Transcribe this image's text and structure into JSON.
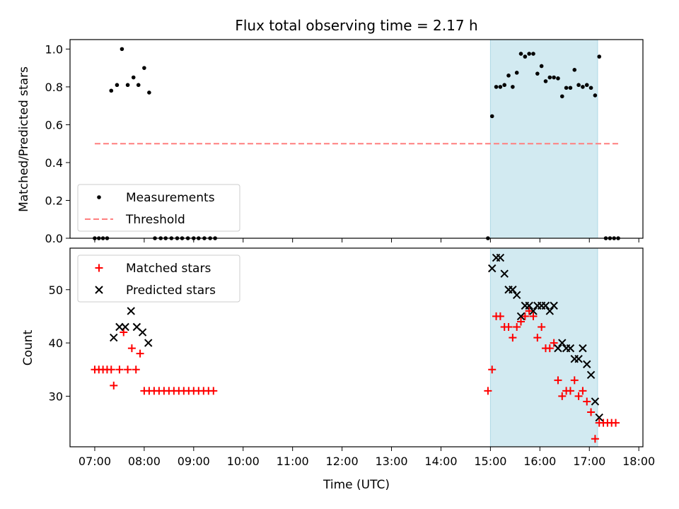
{
  "chart_data": {
    "type": "scatter",
    "title": "Flux total observing time = 2.17 h",
    "xlabel": "Time (UTC)",
    "x_unit": "hours UTC",
    "xlim": [
      "06:30",
      "18:05"
    ],
    "x_ticks": [
      "07:00",
      "08:00",
      "09:00",
      "10:00",
      "11:00",
      "12:00",
      "13:00",
      "14:00",
      "15:00",
      "16:00",
      "17:00",
      "18:00"
    ],
    "shaded_interval": {
      "start": "15:00",
      "end": "17:10",
      "color": "#add8e6"
    },
    "panels": [
      {
        "name": "ratio",
        "ylabel": "Matched/Predicted stars",
        "ylim": [
          0,
          1.05
        ],
        "y_ticks": [
          0.0,
          0.2,
          0.4,
          0.6,
          0.8,
          1.0
        ],
        "legend": {
          "placement": "lower-left",
          "entries": [
            {
              "label": "Measurements",
              "marker": "dot",
              "color": "#000000"
            },
            {
              "label": "Threshold",
              "marker": "dashed-line",
              "color": "#ff7f7f"
            }
          ]
        },
        "threshold": {
          "value": 0.5,
          "x_start": "07:00",
          "x_end": "17:35"
        },
        "series": [
          {
            "name": "Measurements",
            "marker": "dot",
            "color": "#000000",
            "points": [
              [
                "07:00",
                0
              ],
              [
                "07:05",
                0
              ],
              [
                "07:10",
                0
              ],
              [
                "07:15",
                0
              ],
              [
                "07:20",
                0.78
              ],
              [
                "07:27",
                0.81
              ],
              [
                "07:33",
                1.0
              ],
              [
                "07:40",
                0.81
              ],
              [
                "07:47",
                0.85
              ],
              [
                "07:53",
                0.81
              ],
              [
                "08:00",
                0.9
              ],
              [
                "08:06",
                0.77
              ],
              [
                "08:13",
                0
              ],
              [
                "08:20",
                0
              ],
              [
                "08:26",
                0
              ],
              [
                "08:33",
                0
              ],
              [
                "08:40",
                0
              ],
              [
                "08:46",
                0
              ],
              [
                "08:53",
                0
              ],
              [
                "09:00",
                0
              ],
              [
                "09:06",
                0
              ],
              [
                "09:13",
                0
              ],
              [
                "09:20",
                0
              ],
              [
                "09:26",
                0
              ],
              [
                "14:57",
                0
              ],
              [
                "15:02",
                0.645
              ],
              [
                "15:07",
                0.8
              ],
              [
                "15:12",
                0.8
              ],
              [
                "15:17",
                0.81
              ],
              [
                "15:22",
                0.86
              ],
              [
                "15:27",
                0.8
              ],
              [
                "15:32",
                0.875
              ],
              [
                "15:37",
                0.975
              ],
              [
                "15:42",
                0.96
              ],
              [
                "15:47",
                0.975
              ],
              [
                "15:52",
                0.975
              ],
              [
                "15:57",
                0.87
              ],
              [
                "16:02",
                0.91
              ],
              [
                "16:07",
                0.83
              ],
              [
                "16:12",
                0.85
              ],
              [
                "16:17",
                0.85
              ],
              [
                "16:22",
                0.845
              ],
              [
                "16:27",
                0.75
              ],
              [
                "16:32",
                0.795
              ],
              [
                "16:37",
                0.795
              ],
              [
                "16:42",
                0.89
              ],
              [
                "16:47",
                0.81
              ],
              [
                "16:52",
                0.8
              ],
              [
                "16:57",
                0.81
              ],
              [
                "17:02",
                0.795
              ],
              [
                "17:07",
                0.755
              ],
              [
                "17:12",
                0.96
              ],
              [
                "17:20",
                0
              ],
              [
                "17:25",
                0
              ],
              [
                "17:30",
                0
              ],
              [
                "17:35",
                0
              ]
            ]
          }
        ]
      },
      {
        "name": "count",
        "ylabel": "Count",
        "ylim": [
          20.5,
          57.8
        ],
        "y_ticks": [
          30,
          40,
          50
        ],
        "legend": {
          "placement": "upper-left",
          "entries": [
            {
              "label": "Matched stars",
              "marker": "plus",
              "color": "#ff0000"
            },
            {
              "label": "Predicted stars",
              "marker": "x",
              "color": "#000000"
            }
          ]
        },
        "series": [
          {
            "name": "Matched stars",
            "marker": "plus",
            "color": "#ff0000",
            "points": [
              [
                "07:00",
                35
              ],
              [
                "07:05",
                35
              ],
              [
                "07:10",
                35
              ],
              [
                "07:15",
                35
              ],
              [
                "07:20",
                35
              ],
              [
                "07:23",
                32
              ],
              [
                "07:30",
                35
              ],
              [
                "07:35",
                42
              ],
              [
                "07:40",
                35
              ],
              [
                "07:45",
                39
              ],
              [
                "07:50",
                35
              ],
              [
                "07:55",
                38
              ],
              [
                "08:00",
                31
              ],
              [
                "08:06",
                31
              ],
              [
                "08:12",
                31
              ],
              [
                "08:18",
                31
              ],
              [
                "08:24",
                31
              ],
              [
                "08:30",
                31
              ],
              [
                "08:36",
                31
              ],
              [
                "08:42",
                31
              ],
              [
                "08:48",
                31
              ],
              [
                "08:54",
                31
              ],
              [
                "09:00",
                31
              ],
              [
                "09:06",
                31
              ],
              [
                "09:12",
                31
              ],
              [
                "09:18",
                31
              ],
              [
                "09:24",
                31
              ],
              [
                "14:57",
                31
              ],
              [
                "15:02",
                35
              ],
              [
                "15:07",
                45
              ],
              [
                "15:12",
                45
              ],
              [
                "15:17",
                43
              ],
              [
                "15:22",
                43
              ],
              [
                "15:27",
                41
              ],
              [
                "15:32",
                43
              ],
              [
                "15:37",
                44
              ],
              [
                "15:42",
                45
              ],
              [
                "15:47",
                46
              ],
              [
                "15:52",
                45
              ],
              [
                "15:57",
                41
              ],
              [
                "16:02",
                43
              ],
              [
                "16:07",
                39
              ],
              [
                "16:12",
                39
              ],
              [
                "16:17",
                40
              ],
              [
                "16:22",
                33
              ],
              [
                "16:27",
                30
              ],
              [
                "16:32",
                31
              ],
              [
                "16:37",
                31
              ],
              [
                "16:42",
                33
              ],
              [
                "16:47",
                30
              ],
              [
                "16:52",
                31
              ],
              [
                "16:57",
                29
              ],
              [
                "17:02",
                27
              ],
              [
                "17:07",
                22
              ],
              [
                "17:12",
                25
              ],
              [
                "17:17",
                25
              ],
              [
                "17:22",
                25
              ],
              [
                "17:27",
                25
              ],
              [
                "17:32",
                25
              ]
            ]
          },
          {
            "name": "Predicted stars",
            "marker": "x",
            "color": "#000000",
            "points": [
              [
                "07:23",
                41
              ],
              [
                "07:30",
                43
              ],
              [
                "07:37",
                43
              ],
              [
                "07:44",
                46
              ],
              [
                "07:51",
                43
              ],
              [
                "07:58",
                42
              ],
              [
                "08:05",
                40
              ],
              [
                "15:02",
                54
              ],
              [
                "15:07",
                56
              ],
              [
                "15:12",
                56
              ],
              [
                "15:17",
                53
              ],
              [
                "15:22",
                50
              ],
              [
                "15:27",
                50
              ],
              [
                "15:32",
                49
              ],
              [
                "15:37",
                45
              ],
              [
                "15:42",
                47
              ],
              [
                "15:47",
                47
              ],
              [
                "15:52",
                46
              ],
              [
                "15:57",
                47
              ],
              [
                "16:02",
                47
              ],
              [
                "16:07",
                47
              ],
              [
                "16:12",
                46
              ],
              [
                "16:17",
                47
              ],
              [
                "16:22",
                39
              ],
              [
                "16:27",
                40
              ],
              [
                "16:32",
                39
              ],
              [
                "16:37",
                39
              ],
              [
                "16:42",
                37
              ],
              [
                "16:47",
                37
              ],
              [
                "16:52",
                39
              ],
              [
                "16:57",
                36
              ],
              [
                "17:02",
                34
              ],
              [
                "17:07",
                29
              ],
              [
                "17:12",
                26
              ]
            ]
          }
        ]
      }
    ]
  }
}
